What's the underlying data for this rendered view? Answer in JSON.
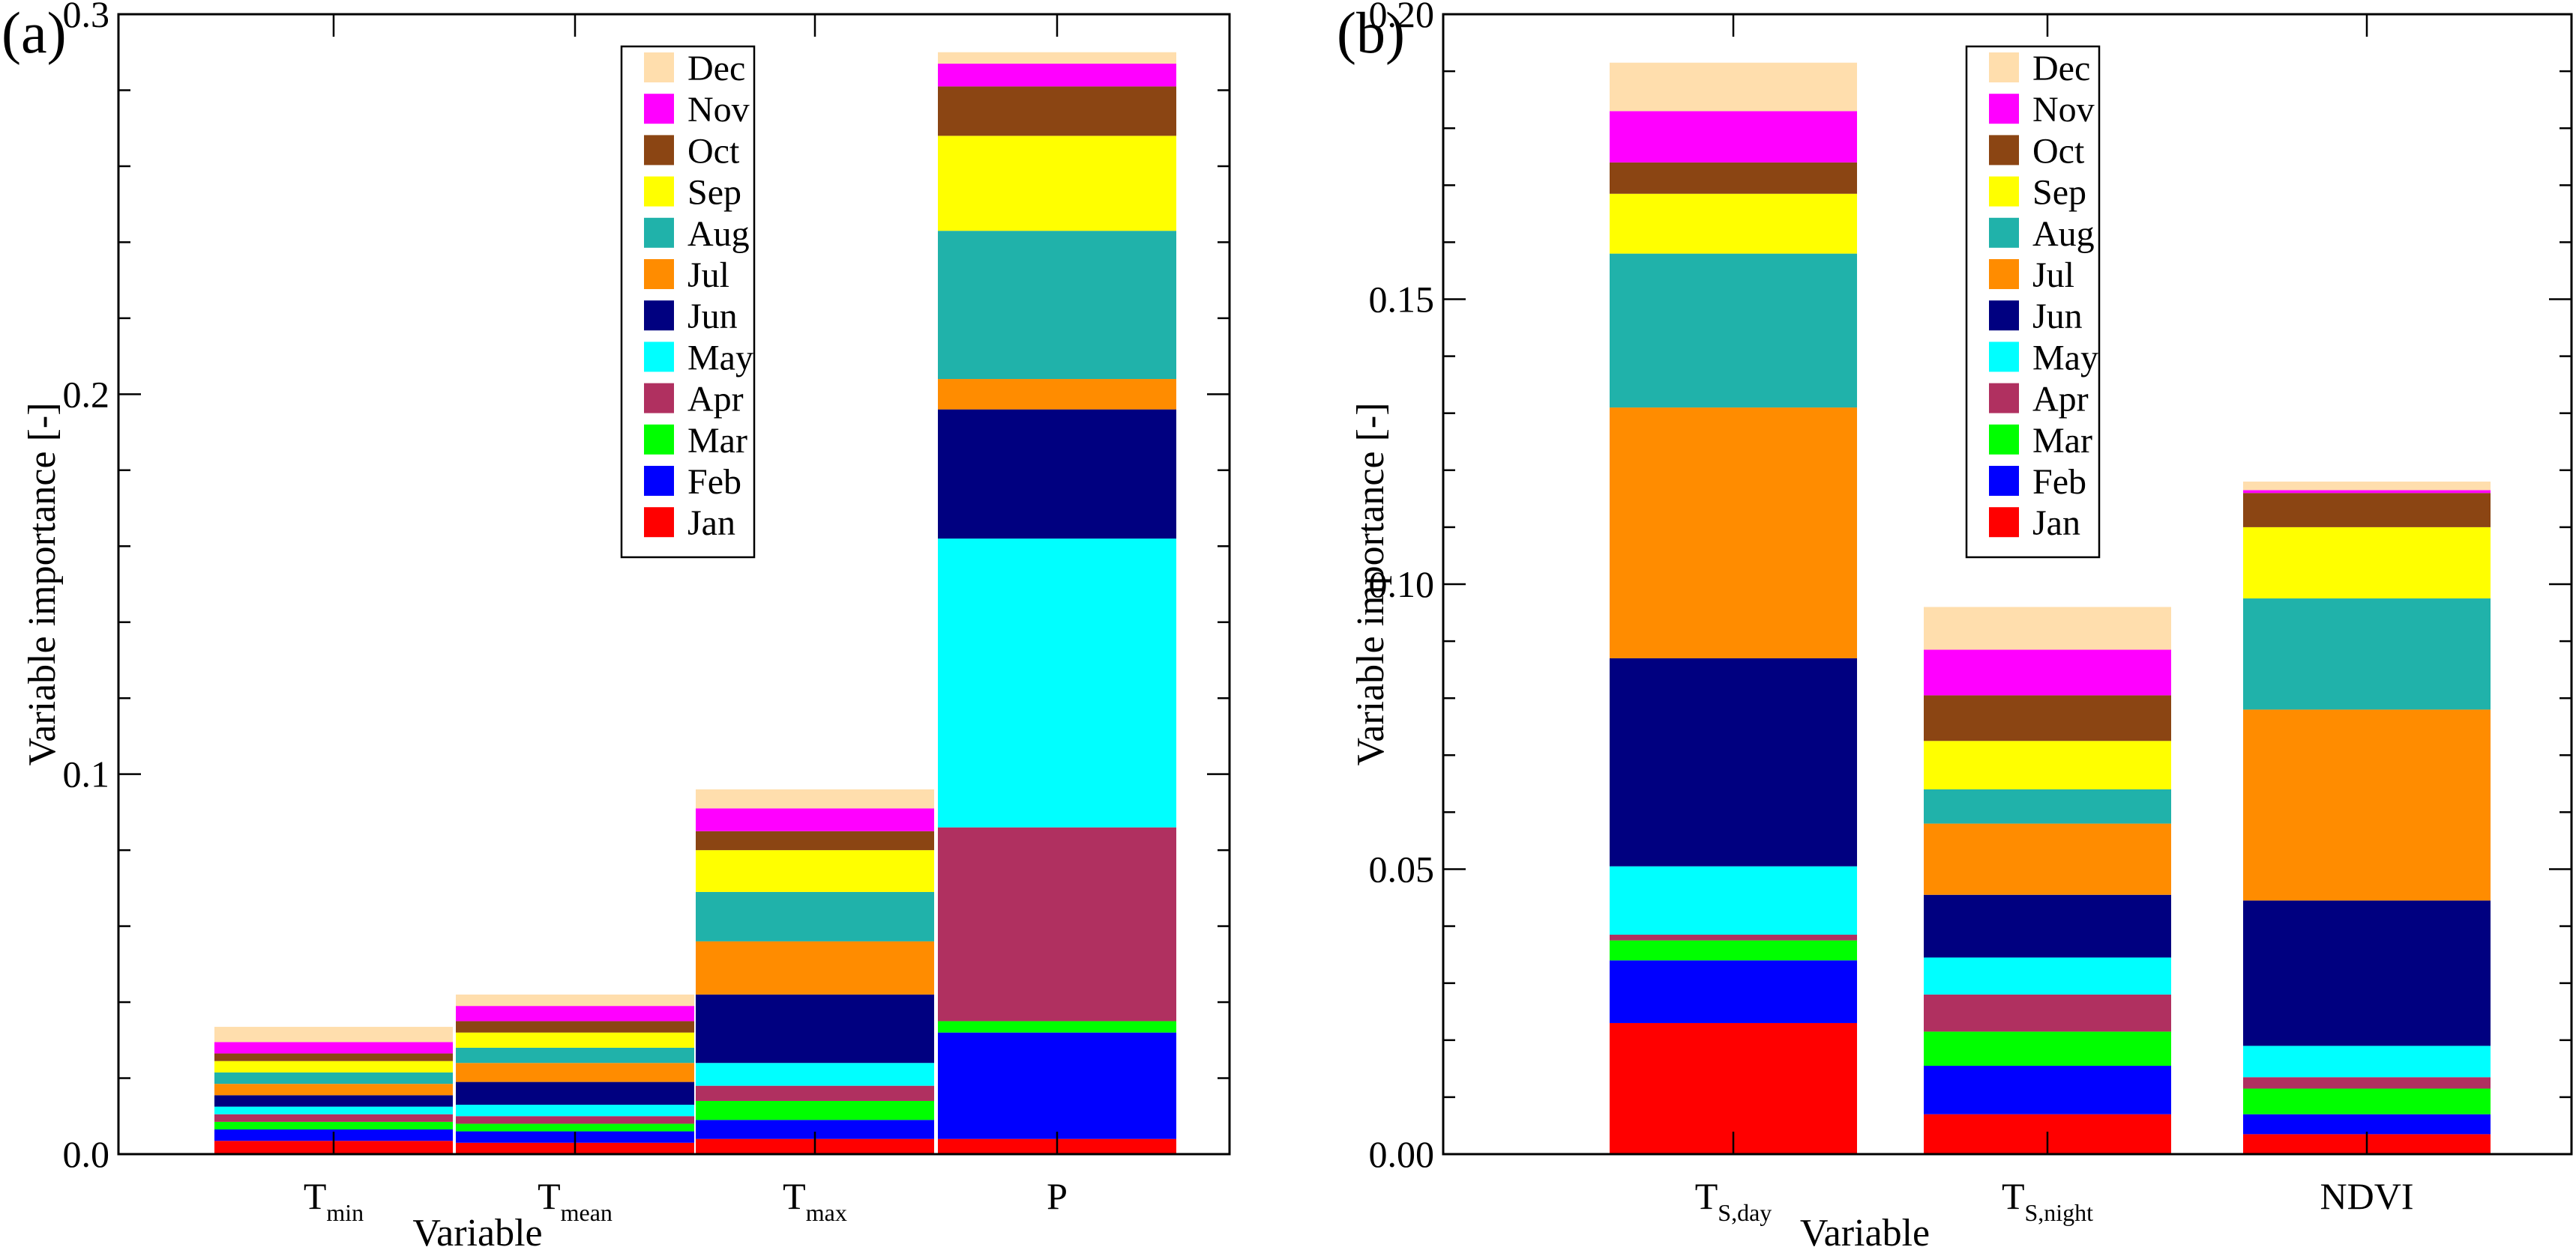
{
  "chart_data": [
    {
      "type": "bar",
      "stacked": true,
      "panel_label": "(a)",
      "xlabel": "Variable",
      "ylabel": "Variable importance [-]",
      "ylim": [
        0,
        0.3
      ],
      "yticks": [
        "0.0",
        "0.1",
        "0.2",
        "0.3"
      ],
      "categories": [
        {
          "main": "T",
          "sub": "min"
        },
        {
          "main": "T",
          "sub": "mean"
        },
        {
          "main": "T",
          "sub": "max"
        },
        {
          "main": "P",
          "sub": ""
        }
      ],
      "legend_position": "top-center",
      "series": [
        {
          "name": "Jan",
          "color": "#ff0000",
          "values": [
            0.0035,
            0.003,
            0.004,
            0.004
          ]
        },
        {
          "name": "Feb",
          "color": "#0000ff",
          "values": [
            0.003,
            0.003,
            0.005,
            0.028
          ]
        },
        {
          "name": "Mar",
          "color": "#00ff00",
          "values": [
            0.002,
            0.002,
            0.005,
            0.003
          ]
        },
        {
          "name": "Apr",
          "color": "#b03060",
          "values": [
            0.002,
            0.002,
            0.004,
            0.051
          ]
        },
        {
          "name": "May",
          "color": "#00ffff",
          "values": [
            0.002,
            0.003,
            0.006,
            0.076
          ]
        },
        {
          "name": "Jun",
          "color": "#000080",
          "values": [
            0.003,
            0.006,
            0.018,
            0.034
          ]
        },
        {
          "name": "Jul",
          "color": "#ff8c00",
          "values": [
            0.003,
            0.005,
            0.014,
            0.008
          ]
        },
        {
          "name": "Aug",
          "color": "#20b2aa",
          "values": [
            0.003,
            0.004,
            0.013,
            0.039
          ]
        },
        {
          "name": "Sep",
          "color": "#ffff00",
          "values": [
            0.003,
            0.004,
            0.011,
            0.025
          ]
        },
        {
          "name": "Oct",
          "color": "#8b4513",
          "values": [
            0.002,
            0.003,
            0.005,
            0.013
          ]
        },
        {
          "name": "Nov",
          "color": "#ff00ff",
          "values": [
            0.003,
            0.004,
            0.006,
            0.006
          ]
        },
        {
          "name": "Dec",
          "color": "#ffdead",
          "values": [
            0.004,
            0.003,
            0.005,
            0.003
          ]
        }
      ]
    },
    {
      "type": "bar",
      "stacked": true,
      "panel_label": "(b)",
      "xlabel": "Variable",
      "ylabel": "Variable importance [-]",
      "ylim": [
        0,
        0.2
      ],
      "yticks": [
        "0.00",
        "0.05",
        "0.10",
        "0.15",
        "0.20"
      ],
      "categories": [
        {
          "main": "T",
          "sub": "S,day"
        },
        {
          "main": "T",
          "sub": "S,night"
        },
        {
          "main": "NDVI",
          "sub": ""
        }
      ],
      "legend_position": "top-center",
      "series": [
        {
          "name": "Jan",
          "color": "#ff0000",
          "values": [
            0.023,
            0.007,
            0.0035
          ]
        },
        {
          "name": "Feb",
          "color": "#0000ff",
          "values": [
            0.011,
            0.0085,
            0.0035
          ]
        },
        {
          "name": "Mar",
          "color": "#00ff00",
          "values": [
            0.0035,
            0.006,
            0.0045
          ]
        },
        {
          "name": "Apr",
          "color": "#b03060",
          "values": [
            0.001,
            0.0065,
            0.002
          ]
        },
        {
          "name": "May",
          "color": "#00ffff",
          "values": [
            0.012,
            0.0065,
            0.0055
          ]
        },
        {
          "name": "Jun",
          "color": "#000080",
          "values": [
            0.0365,
            0.011,
            0.0255
          ]
        },
        {
          "name": "Jul",
          "color": "#ff8c00",
          "values": [
            0.044,
            0.0125,
            0.0335
          ]
        },
        {
          "name": "Aug",
          "color": "#20b2aa",
          "values": [
            0.027,
            0.006,
            0.0195
          ]
        },
        {
          "name": "Sep",
          "color": "#ffff00",
          "values": [
            0.0105,
            0.0085,
            0.0125
          ]
        },
        {
          "name": "Oct",
          "color": "#8b4513",
          "values": [
            0.0055,
            0.008,
            0.006
          ]
        },
        {
          "name": "Nov",
          "color": "#ff00ff",
          "values": [
            0.009,
            0.008,
            0.0005
          ]
        },
        {
          "name": "Dec",
          "color": "#ffdead",
          "values": [
            0.0085,
            0.0075,
            0.0015
          ]
        }
      ]
    }
  ]
}
